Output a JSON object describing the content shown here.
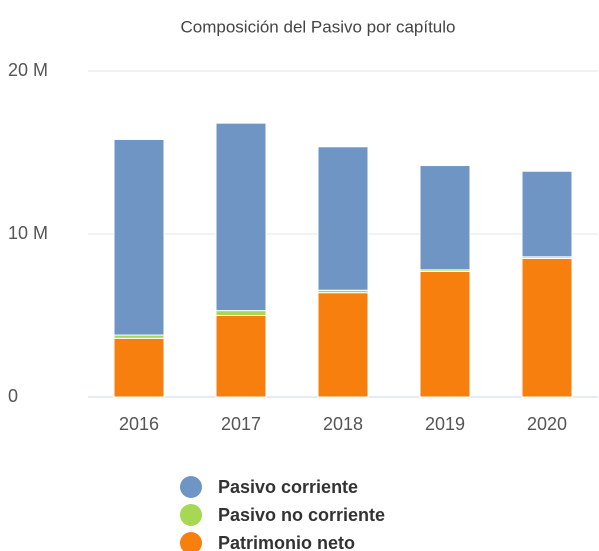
{
  "chart_data": {
    "type": "stacked_bar",
    "title": "Composición del Pasivo por capítulo",
    "categories": [
      "2016",
      "2017",
      "2018",
      "2019",
      "2020"
    ],
    "series": [
      {
        "name": "Patrimonio neto",
        "color": "#f77f0e",
        "values": [
          3600000,
          5000000,
          6400000,
          7700000,
          8500000
        ]
      },
      {
        "name": "Pasivo no corriente",
        "color": "#a6d854",
        "values": [
          200000,
          300000,
          150000,
          100000,
          100000
        ]
      },
      {
        "name": "Pasivo corriente",
        "color": "#6f95c4",
        "values": [
          12000000,
          11500000,
          8800000,
          6400000,
          5250000
        ]
      }
    ],
    "ylim": [
      0,
      20000000
    ],
    "yticks": [
      {
        "value": 0,
        "label": "0"
      },
      {
        "value": 10000000,
        "label": "10 M"
      },
      {
        "value": 20000000,
        "label": "20 M"
      }
    ],
    "grid": true
  }
}
